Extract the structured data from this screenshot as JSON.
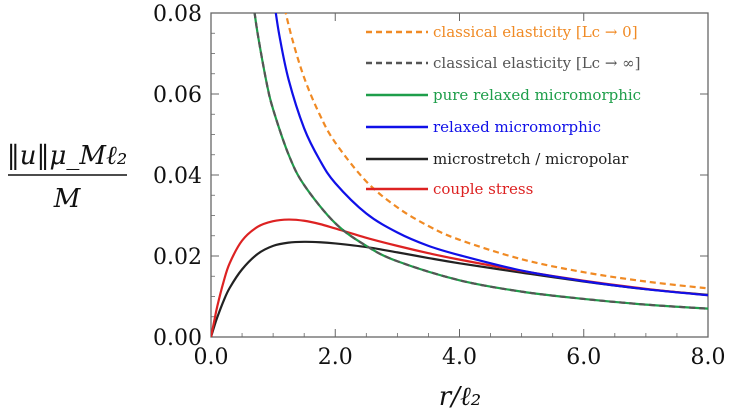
{
  "chart_data": {
    "type": "line",
    "xlabel": "r/ℓ₂",
    "ylabel_numerator": "‖u‖μ_Mℓ₂",
    "ylabel_denominator": "M",
    "xlim": [
      0,
      8
    ],
    "ylim": [
      0,
      0.08
    ],
    "x_ticks": [
      "0.0",
      "2.0",
      "4.0",
      "6.0",
      "8.0"
    ],
    "y_ticks": [
      "0.00",
      "0.02",
      "0.04",
      "0.06",
      "0.08"
    ],
    "grid": false,
    "legend_position": "top-right",
    "series": [
      {
        "name": "classical elasticity [Lc → 0]",
        "color": "#f08a24",
        "dash": true,
        "x": [
          1.15,
          1.3,
          1.5,
          1.75,
          2.0,
          2.5,
          3.0,
          3.5,
          4.0,
          5.0,
          6.0,
          7.0,
          8.0
        ],
        "y": [
          0.0835,
          0.074,
          0.064,
          0.0549,
          0.048,
          0.0384,
          0.032,
          0.0274,
          0.024,
          0.0192,
          0.016,
          0.0137,
          0.012
        ]
      },
      {
        "name": "classical elasticity [Lc → ∞]",
        "color": "#555555",
        "dash": true,
        "x": [
          0.68,
          0.75,
          0.9,
          1.0,
          1.25,
          1.5,
          2.0,
          2.5,
          3.0,
          4.0,
          5.0,
          6.0,
          7.0,
          8.0
        ],
        "y": [
          0.0826,
          0.075,
          0.0624,
          0.0562,
          0.045,
          0.0375,
          0.0281,
          0.0225,
          0.0187,
          0.014,
          0.0112,
          0.0094,
          0.008,
          0.007
        ]
      },
      {
        "name": "pure relaxed micromorphic",
        "color": "#1e9e4a",
        "dash": false,
        "x": [
          0.68,
          0.75,
          0.9,
          1.0,
          1.25,
          1.5,
          2.0,
          2.5,
          3.0,
          4.0,
          5.0,
          6.0,
          7.0,
          8.0
        ],
        "y": [
          0.0826,
          0.075,
          0.0624,
          0.0562,
          0.045,
          0.0375,
          0.0281,
          0.0225,
          0.0187,
          0.014,
          0.0112,
          0.0094,
          0.008,
          0.007
        ]
      },
      {
        "name": "relaxed micromorphic",
        "color": "#1010e8",
        "dash": false,
        "x": [
          1.02,
          1.1,
          1.25,
          1.5,
          1.75,
          2.0,
          2.5,
          3.0,
          3.5,
          4.0,
          5.0,
          6.0,
          7.0,
          8.0
        ],
        "y": [
          0.0825,
          0.0745,
          0.0635,
          0.0515,
          0.0437,
          0.038,
          0.0305,
          0.0258,
          0.0225,
          0.0202,
          0.0164,
          0.0138,
          0.0118,
          0.0103
        ]
      },
      {
        "name": "microstretch / micropolar",
        "color": "#222222",
        "dash": false,
        "x": [
          0.0,
          0.05,
          0.1,
          0.2,
          0.3,
          0.5,
          0.75,
          1.0,
          1.25,
          1.5,
          1.75,
          2.0,
          2.5,
          3.0,
          3.5,
          4.0,
          5.0,
          6.0,
          7.0,
          8.0
        ],
        "y": [
          0.0,
          0.0025,
          0.0048,
          0.0088,
          0.0121,
          0.0167,
          0.0205,
          0.0225,
          0.0233,
          0.0235,
          0.0234,
          0.0231,
          0.0222,
          0.0209,
          0.0195,
          0.0182,
          0.0159,
          0.0137,
          0.0118,
          0.0104
        ]
      },
      {
        "name": "couple stress",
        "color": "#dd2222",
        "dash": false,
        "x": [
          0.0,
          0.05,
          0.1,
          0.2,
          0.3,
          0.5,
          0.75,
          1.0,
          1.25,
          1.5,
          1.75,
          2.0,
          2.5,
          3.0,
          3.5,
          4.0,
          5.0,
          6.0,
          7.0,
          8.0
        ],
        "y": [
          0.0,
          0.0038,
          0.0075,
          0.0135,
          0.0182,
          0.0238,
          0.0272,
          0.0286,
          0.029,
          0.0287,
          0.0279,
          0.0268,
          0.0245,
          0.0225,
          0.0207,
          0.0191,
          0.0163,
          0.0139,
          0.0119,
          0.0103
        ]
      }
    ]
  }
}
